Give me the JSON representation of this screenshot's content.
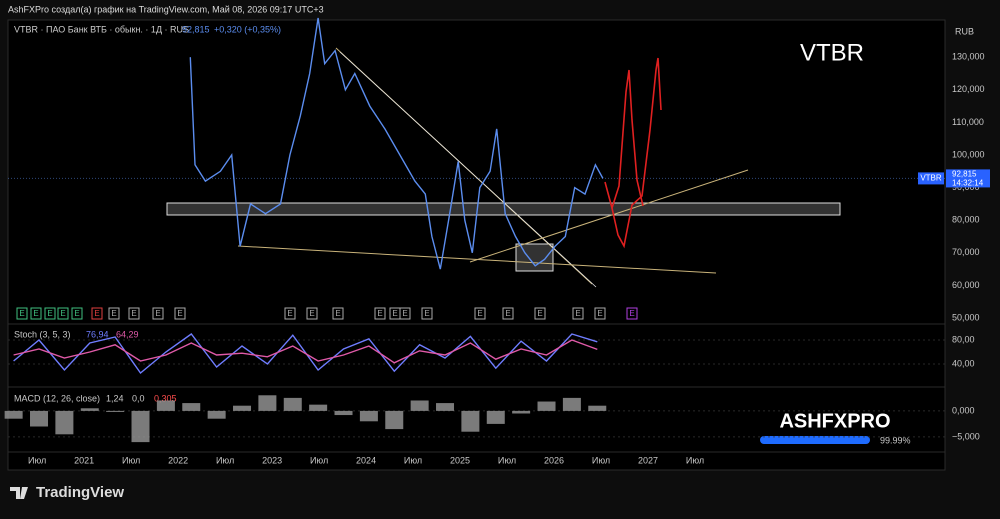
{
  "header": {
    "caption": "AshFXPro создал(а) график на TradingView.com, Май 08, 2026 09:17 UTC+3"
  },
  "footer": {
    "brand": "TradingView"
  },
  "watermark": {
    "brand": "ASHFXPRO",
    "progress": "99.99%"
  },
  "chart_data": [
    {
      "type": "line",
      "title": "VTBR · ПАО Банк ВТБ · обыкн. · 1Д · RUS",
      "last_price_label": "92,815",
      "change": "+0,320 (+0,35%)",
      "annotation": "VTBR",
      "currency": "RUB",
      "last_time": "14:32:14",
      "earnings_marker": "E",
      "series": [
        {
          "name": "VTBR",
          "color": "#5b8def",
          "x": [
            2022.13,
            2022.18,
            2022.29,
            2022.45,
            2022.57,
            2022.66,
            2022.77,
            2022.93,
            2023.09,
            2023.19,
            2023.3,
            2023.4,
            2023.49,
            2023.56,
            2023.67,
            2023.78,
            2023.88,
            2024.04,
            2024.2,
            2024.36,
            2024.52,
            2024.63,
            2024.7,
            2024.79,
            2024.89,
            2024.98,
            2025.05,
            2025.13,
            2025.21,
            2025.32,
            2025.39,
            2025.48,
            2025.59,
            2025.69,
            2025.8,
            2025.9,
            2026.01,
            2026.12,
            2026.22,
            2026.33,
            2026.44,
            2026.52
          ],
          "values": [
            130000,
            97000,
            92000,
            95000,
            100000,
            72000,
            85000,
            82000,
            85000,
            100000,
            112000,
            125000,
            142000,
            128000,
            132000,
            120000,
            125000,
            115000,
            108000,
            100000,
            92000,
            88000,
            75000,
            65000,
            82000,
            98000,
            80000,
            70000,
            90000,
            95000,
            108000,
            82000,
            75000,
            70000,
            66000,
            68000,
            72000,
            75000,
            90000,
            88000,
            97000,
            92815
          ]
        }
      ],
      "xlim": [
        2020.19,
        2030.16
      ],
      "xticks": [
        {
          "value": 2020.5,
          "label": "Июл"
        },
        {
          "value": 2021,
          "label": "2021"
        },
        {
          "value": 2021.5,
          "label": "Июл"
        },
        {
          "value": 2022,
          "label": "2022"
        },
        {
          "value": 2022.5,
          "label": "Июл"
        },
        {
          "value": 2023,
          "label": "2023"
        },
        {
          "value": 2023.5,
          "label": "Июл"
        },
        {
          "value": 2024,
          "label": "2024"
        },
        {
          "value": 2024.5,
          "label": "Июл"
        },
        {
          "value": 2025,
          "label": "2025"
        },
        {
          "value": 2025.5,
          "label": "Июл"
        },
        {
          "value": 2026,
          "label": "2026"
        },
        {
          "value": 2026.5,
          "label": "Июл"
        },
        {
          "value": 2027,
          "label": "2027"
        },
        {
          "value": 2027.5,
          "label": "Июл"
        }
      ],
      "ylim": [
        50000,
        141400
      ],
      "yticks": [
        {
          "value": 130000,
          "label": "130,000"
        },
        {
          "value": 120000,
          "label": "120,000"
        },
        {
          "value": 110000,
          "label": "110,000"
        },
        {
          "value": 100000,
          "label": "100,000"
        },
        {
          "value": 90000,
          "label": "90,000"
        },
        {
          "value": 80000,
          "label": "80,000"
        },
        {
          "value": 70000,
          "label": "70,000"
        },
        {
          "value": 60000,
          "label": "60,000"
        },
        {
          "value": 50000,
          "label": "50,000"
        }
      ]
    },
    {
      "type": "line",
      "title": "Stoch (3, 5, 3)",
      "legend_values": [
        "76,94",
        "64,29"
      ],
      "series": [
        {
          "color": "#6f7dff",
          "x": [
            2020.25,
            2020.52,
            2020.79,
            2021.06,
            2021.33,
            2021.6,
            2021.87,
            2022.14,
            2022.41,
            2022.68,
            2022.95,
            2023.22,
            2023.49,
            2023.76,
            2024.03,
            2024.3,
            2024.57,
            2024.84,
            2025.11,
            2025.38,
            2025.65,
            2025.92,
            2026.19,
            2026.46
          ],
          "values": [
            45,
            80,
            30,
            75,
            85,
            25,
            60,
            90,
            35,
            70,
            40,
            88,
            30,
            65,
            82,
            28,
            72,
            50,
            86,
            33,
            78,
            45,
            90,
            76.94
          ]
        },
        {
          "color": "#e05aa8",
          "x": [
            2020.25,
            2020.52,
            2020.79,
            2021.06,
            2021.33,
            2021.6,
            2021.87,
            2022.14,
            2022.41,
            2022.68,
            2022.95,
            2023.22,
            2023.49,
            2023.76,
            2024.03,
            2024.3,
            2024.57,
            2024.84,
            2025.11,
            2025.38,
            2025.65,
            2025.92,
            2026.19,
            2026.46
          ],
          "values": [
            55,
            65,
            50,
            60,
            72,
            45,
            55,
            75,
            55,
            58,
            52,
            70,
            45,
            55,
            70,
            42,
            62,
            55,
            75,
            48,
            65,
            55,
            80,
            64.29
          ]
        }
      ],
      "ylim": [
        5,
        100
      ],
      "yticks": [
        {
          "value": 80,
          "label": "80,00"
        },
        {
          "value": 40,
          "label": "40,00"
        }
      ]
    },
    {
      "type": "bar",
      "title": "MACD (12, 26, close)",
      "legend_values": [
        "1,24",
        "0,0",
        "0,305"
      ],
      "series": [
        {
          "color": "#9a9a9a",
          "x": [
            2020.25,
            2020.52,
            2020.79,
            2021.06,
            2021.33,
            2021.6,
            2021.87,
            2022.14,
            2022.41,
            2022.68,
            2022.95,
            2023.22,
            2023.49,
            2023.76,
            2024.03,
            2024.3,
            2024.57,
            2024.84,
            2025.11,
            2025.38,
            2025.65,
            2025.92,
            2026.19,
            2026.46
          ],
          "values": [
            -1500,
            -3000,
            -4500,
            500,
            -200,
            -6000,
            2000,
            1500,
            -1500,
            1000,
            3000,
            2500,
            1200,
            -800,
            -2000,
            -3500,
            2000,
            1500,
            -4000,
            -2500,
            -500,
            1800,
            2500,
            1000
          ]
        }
      ],
      "ylim": [
        -7900,
        4400
      ],
      "yticks": [
        {
          "value": 0,
          "label": "0,000"
        },
        {
          "value": -5000,
          "label": "−5,000"
        }
      ]
    }
  ]
}
